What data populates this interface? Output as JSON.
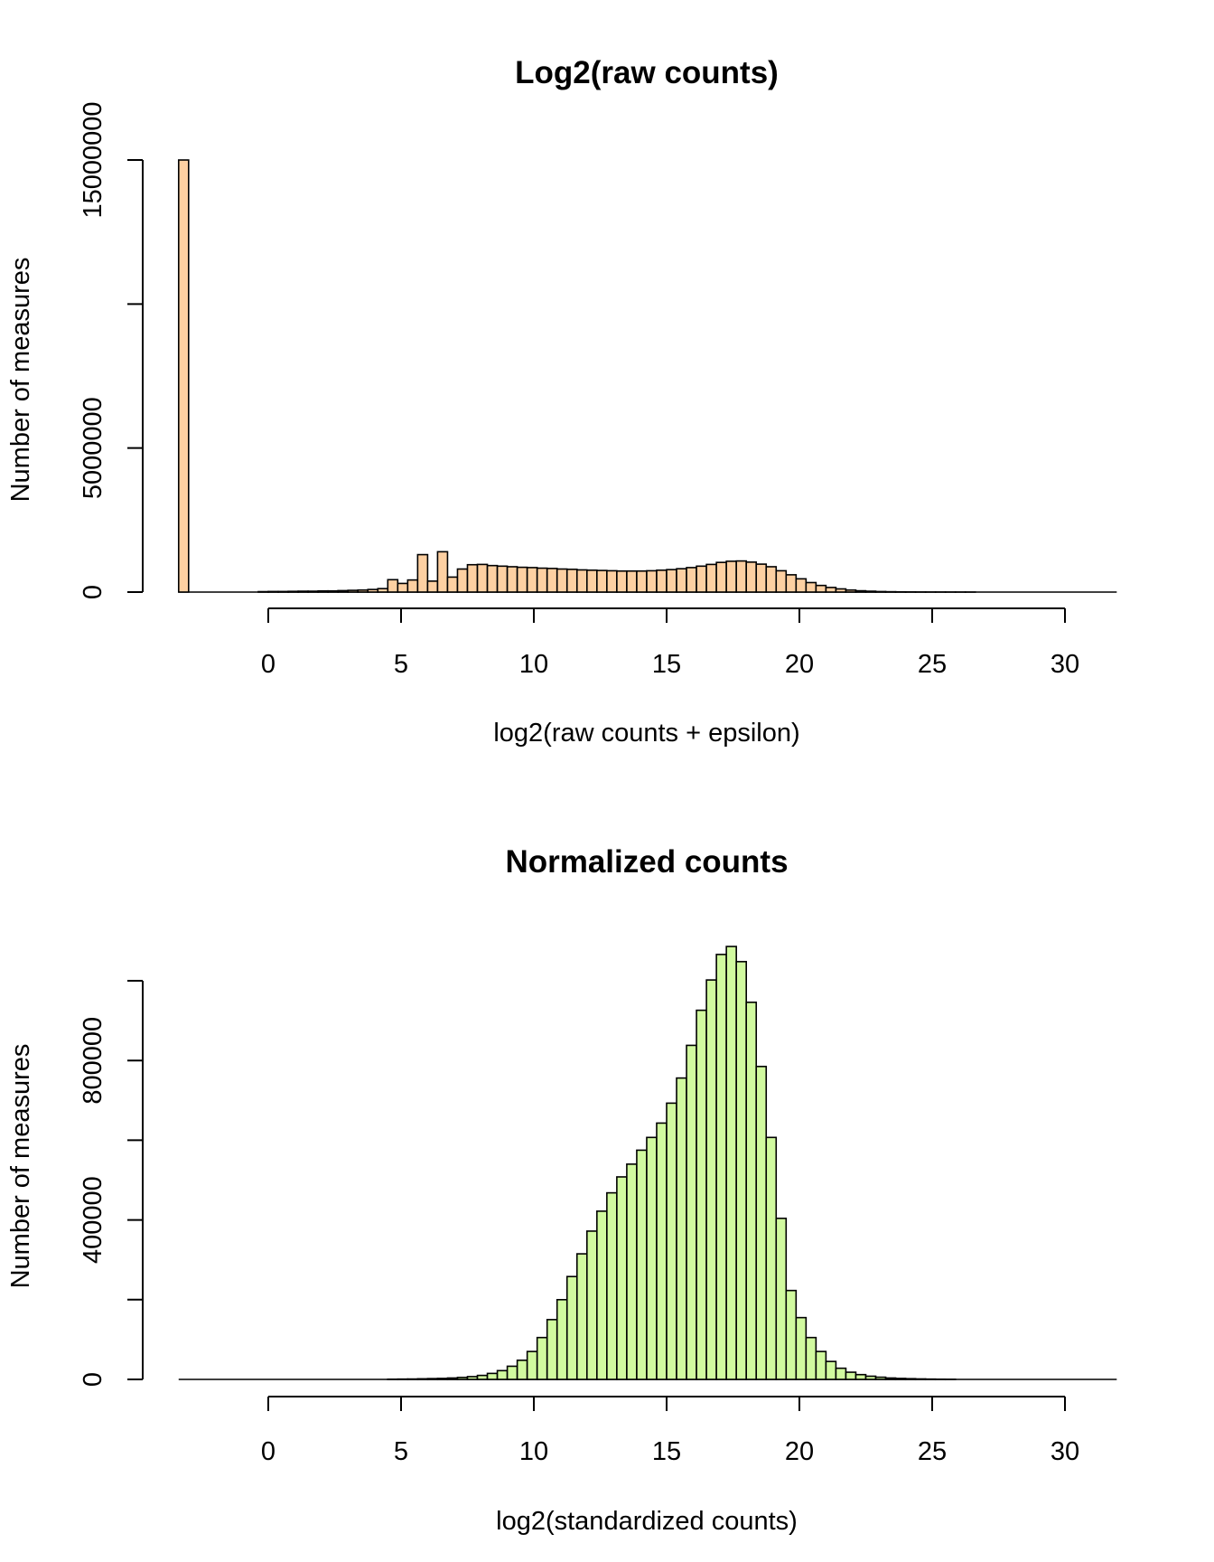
{
  "chart_data": [
    {
      "type": "bar",
      "title": "Log2(raw counts)",
      "xlabel": "log2(raw counts + epsilon)",
      "ylabel": "Number of measures",
      "xlim": [
        -3.5,
        32
      ],
      "ylim": [
        0,
        15000000
      ],
      "xticks": [
        0,
        5,
        10,
        15,
        20,
        25,
        30
      ],
      "yticks": [
        0,
        5000000,
        10000000,
        15000000
      ],
      "ytick_labels": [
        "0",
        "5000000",
        "",
        "15000000"
      ],
      "bin_width": 0.375,
      "bin_start": -3.375,
      "fill": "#fdd0a2",
      "grid": false,
      "legend": "none",
      "bins": [
        {
          "x": -3.375,
          "y": 15000000
        },
        {
          "x": -0.375,
          "y": 15000
        },
        {
          "x": 0,
          "y": 20000
        },
        {
          "x": 0.375,
          "y": 20000
        },
        {
          "x": 0.75,
          "y": 25000
        },
        {
          "x": 1.125,
          "y": 30000
        },
        {
          "x": 1.5,
          "y": 30000
        },
        {
          "x": 1.875,
          "y": 40000
        },
        {
          "x": 2.25,
          "y": 40000
        },
        {
          "x": 2.625,
          "y": 50000
        },
        {
          "x": 3.0,
          "y": 60000
        },
        {
          "x": 3.375,
          "y": 70000
        },
        {
          "x": 3.75,
          "y": 90000
        },
        {
          "x": 4.125,
          "y": 120000
        },
        {
          "x": 4.5,
          "y": 430000
        },
        {
          "x": 4.875,
          "y": 300000
        },
        {
          "x": 5.25,
          "y": 420000
        },
        {
          "x": 5.625,
          "y": 1300000
        },
        {
          "x": 6.0,
          "y": 380000
        },
        {
          "x": 6.375,
          "y": 1400000
        },
        {
          "x": 6.75,
          "y": 520000
        },
        {
          "x": 7.125,
          "y": 800000
        },
        {
          "x": 7.5,
          "y": 950000
        },
        {
          "x": 7.875,
          "y": 960000
        },
        {
          "x": 8.25,
          "y": 920000
        },
        {
          "x": 8.625,
          "y": 900000
        },
        {
          "x": 9.0,
          "y": 880000
        },
        {
          "x": 9.375,
          "y": 860000
        },
        {
          "x": 9.75,
          "y": 850000
        },
        {
          "x": 10.125,
          "y": 830000
        },
        {
          "x": 10.5,
          "y": 820000
        },
        {
          "x": 10.875,
          "y": 800000
        },
        {
          "x": 11.25,
          "y": 790000
        },
        {
          "x": 11.625,
          "y": 770000
        },
        {
          "x": 12.0,
          "y": 760000
        },
        {
          "x": 12.375,
          "y": 750000
        },
        {
          "x": 12.75,
          "y": 740000
        },
        {
          "x": 13.125,
          "y": 730000
        },
        {
          "x": 13.5,
          "y": 730000
        },
        {
          "x": 13.875,
          "y": 730000
        },
        {
          "x": 14.25,
          "y": 740000
        },
        {
          "x": 14.625,
          "y": 760000
        },
        {
          "x": 15.0,
          "y": 780000
        },
        {
          "x": 15.375,
          "y": 810000
        },
        {
          "x": 15.75,
          "y": 850000
        },
        {
          "x": 16.125,
          "y": 900000
        },
        {
          "x": 16.5,
          "y": 960000
        },
        {
          "x": 16.875,
          "y": 1030000
        },
        {
          "x": 17.25,
          "y": 1070000
        },
        {
          "x": 17.625,
          "y": 1080000
        },
        {
          "x": 18.0,
          "y": 1040000
        },
        {
          "x": 18.375,
          "y": 970000
        },
        {
          "x": 18.75,
          "y": 880000
        },
        {
          "x": 19.125,
          "y": 740000
        },
        {
          "x": 19.5,
          "y": 600000
        },
        {
          "x": 19.875,
          "y": 460000
        },
        {
          "x": 20.25,
          "y": 330000
        },
        {
          "x": 20.625,
          "y": 230000
        },
        {
          "x": 21.0,
          "y": 160000
        },
        {
          "x": 21.375,
          "y": 110000
        },
        {
          "x": 21.75,
          "y": 70000
        },
        {
          "x": 22.125,
          "y": 45000
        },
        {
          "x": 22.5,
          "y": 30000
        },
        {
          "x": 22.875,
          "y": 18000
        },
        {
          "x": 23.25,
          "y": 12000
        },
        {
          "x": 23.625,
          "y": 8000
        },
        {
          "x": 24.0,
          "y": 5000
        },
        {
          "x": 24.375,
          "y": 3000
        },
        {
          "x": 24.75,
          "y": 2000
        },
        {
          "x": 25.125,
          "y": 1500
        },
        {
          "x": 25.5,
          "y": 1000
        },
        {
          "x": 25.875,
          "y": 500
        },
        {
          "x": 26.25,
          "y": 300
        }
      ]
    },
    {
      "type": "bar",
      "title": "Normalized counts",
      "xlabel": "log2(standardized counts)",
      "ylabel": "Number of measures",
      "xlim": [
        -3.5,
        32
      ],
      "ylim": [
        0,
        1000000
      ],
      "xticks": [
        0,
        5,
        10,
        15,
        20,
        25,
        30
      ],
      "yticks": [
        0,
        200000,
        400000,
        600000,
        800000,
        1000000
      ],
      "ytick_labels": [
        "0",
        "",
        "400000",
        "",
        "800000",
        ""
      ],
      "bin_width": 0.375,
      "bin_start": -3.375,
      "fill": "#d1fa9f",
      "grid": false,
      "legend": "none",
      "bins": [
        {
          "x": 4.5,
          "y": 500
        },
        {
          "x": 4.875,
          "y": 800
        },
        {
          "x": 5.25,
          "y": 1000
        },
        {
          "x": 5.625,
          "y": 1500
        },
        {
          "x": 6.0,
          "y": 2000
        },
        {
          "x": 6.375,
          "y": 2500
        },
        {
          "x": 6.75,
          "y": 3500
        },
        {
          "x": 7.125,
          "y": 5000
        },
        {
          "x": 7.5,
          "y": 7000
        },
        {
          "x": 7.875,
          "y": 10000
        },
        {
          "x": 8.25,
          "y": 15000
        },
        {
          "x": 8.625,
          "y": 22000
        },
        {
          "x": 9.0,
          "y": 33000
        },
        {
          "x": 9.375,
          "y": 48000
        },
        {
          "x": 9.75,
          "y": 70000
        },
        {
          "x": 10.125,
          "y": 105000
        },
        {
          "x": 10.5,
          "y": 150000
        },
        {
          "x": 10.875,
          "y": 200000
        },
        {
          "x": 11.25,
          "y": 258000
        },
        {
          "x": 11.625,
          "y": 315000
        },
        {
          "x": 12.0,
          "y": 372000
        },
        {
          "x": 12.375,
          "y": 422000
        },
        {
          "x": 12.75,
          "y": 468000
        },
        {
          "x": 13.125,
          "y": 508000
        },
        {
          "x": 13.5,
          "y": 540000
        },
        {
          "x": 13.875,
          "y": 575000
        },
        {
          "x": 14.25,
          "y": 607000
        },
        {
          "x": 14.625,
          "y": 643000
        },
        {
          "x": 15.0,
          "y": 693000
        },
        {
          "x": 15.375,
          "y": 756000
        },
        {
          "x": 15.75,
          "y": 838000
        },
        {
          "x": 16.125,
          "y": 926000
        },
        {
          "x": 16.5,
          "y": 1002000
        },
        {
          "x": 16.875,
          "y": 1066000
        },
        {
          "x": 17.25,
          "y": 1086000
        },
        {
          "x": 17.625,
          "y": 1048000
        },
        {
          "x": 18.0,
          "y": 946000
        },
        {
          "x": 18.375,
          "y": 785000
        },
        {
          "x": 18.75,
          "y": 607000
        },
        {
          "x": 19.125,
          "y": 404000
        },
        {
          "x": 19.5,
          "y": 223000
        },
        {
          "x": 19.875,
          "y": 155000
        },
        {
          "x": 20.25,
          "y": 105000
        },
        {
          "x": 20.625,
          "y": 70000
        },
        {
          "x": 21.0,
          "y": 45000
        },
        {
          "x": 21.375,
          "y": 28000
        },
        {
          "x": 21.75,
          "y": 18000
        },
        {
          "x": 22.125,
          "y": 12000
        },
        {
          "x": 22.5,
          "y": 8000
        },
        {
          "x": 22.875,
          "y": 5500
        },
        {
          "x": 23.25,
          "y": 3500
        },
        {
          "x": 23.625,
          "y": 2500
        },
        {
          "x": 24.0,
          "y": 1800
        },
        {
          "x": 24.375,
          "y": 1200
        },
        {
          "x": 24.75,
          "y": 800
        },
        {
          "x": 25.125,
          "y": 500
        },
        {
          "x": 25.5,
          "y": 300
        }
      ]
    }
  ]
}
